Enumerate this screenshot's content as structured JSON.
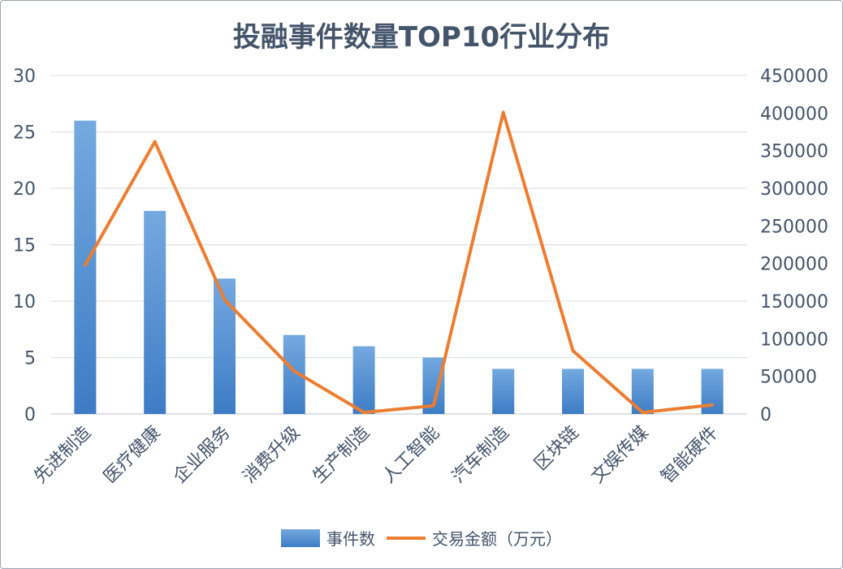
{
  "chart_data": {
    "type": "bar",
    "title": "投融事件数量TOP10行业分布",
    "categories": [
      "先进制造",
      "医疗健康",
      "企业服务",
      "消费升级",
      "生产制造",
      "人工智能",
      "汽车制造",
      "区块链",
      "文娱传媒",
      "智能硬件"
    ],
    "series": [
      {
        "name": "事件数",
        "type": "bar",
        "axis": "left",
        "color": "#5b9bd5",
        "values": [
          26,
          18,
          12,
          7,
          6,
          5,
          4,
          4,
          4,
          4
        ]
      },
      {
        "name": "交易金额（万元）",
        "type": "line",
        "axis": "right",
        "color": "#ed7d31",
        "values": [
          198000,
          362000,
          152000,
          57000,
          2000,
          11000,
          401000,
          84000,
          2000,
          12000
        ]
      }
    ],
    "y_left": {
      "min": 0,
      "max": 30,
      "ticks": [
        0,
        5,
        10,
        15,
        20,
        25,
        30
      ]
    },
    "y_right": {
      "min": 0,
      "max": 450000,
      "ticks": [
        0,
        50000,
        100000,
        150000,
        200000,
        250000,
        300000,
        350000,
        400000,
        450000
      ]
    },
    "grid": true,
    "legend_position": "bottom"
  }
}
